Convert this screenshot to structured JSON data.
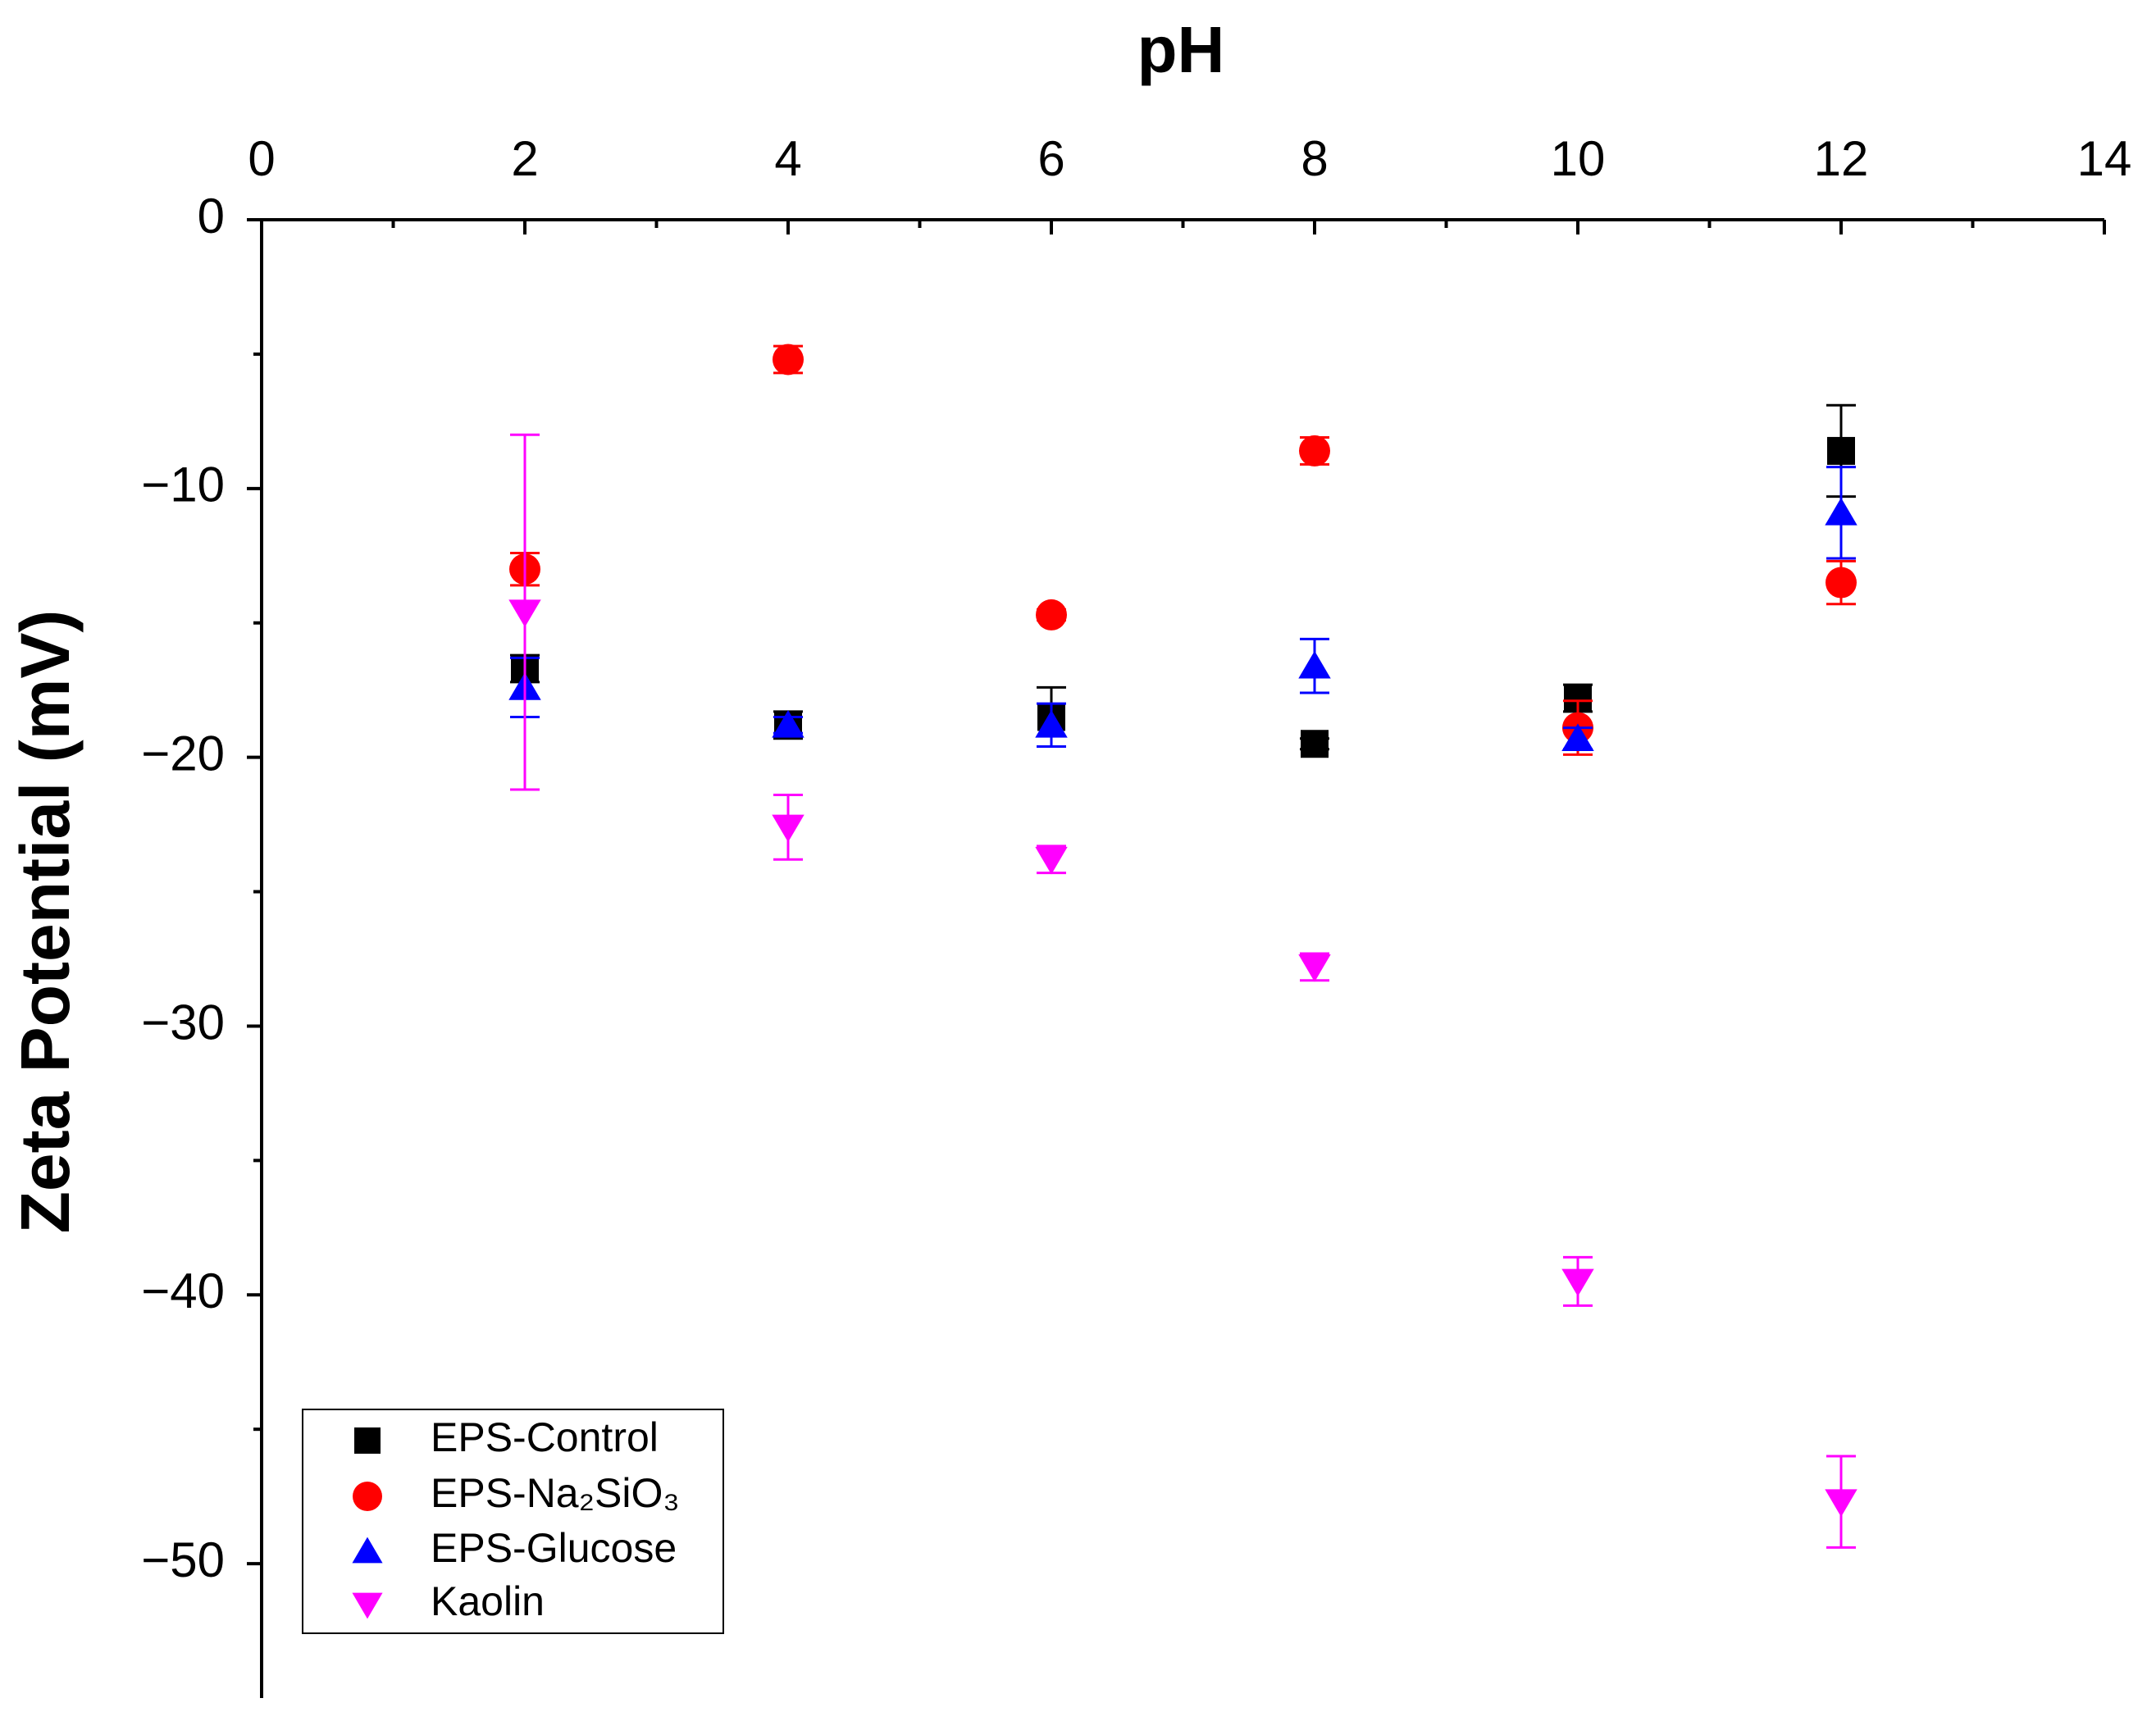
{
  "chart_data": {
    "type": "scatter",
    "title": "pH",
    "y_label": "Zeta Potential (mV)",
    "x": [
      2,
      4,
      6,
      8,
      10,
      12
    ],
    "xlim": [
      0,
      14
    ],
    "xticks": [
      0,
      2,
      4,
      6,
      8,
      10,
      12,
      14
    ],
    "xminorticks": [
      1,
      3,
      5,
      7,
      9,
      11,
      13
    ],
    "ylim": [
      -55,
      0
    ],
    "yticks": [
      0,
      {
        "value": -10,
        "label": "−10"
      },
      {
        "value": -20,
        "label": "−20"
      },
      {
        "value": -30,
        "label": "−30"
      },
      {
        "value": -40,
        "label": "−40"
      },
      {
        "value": -50,
        "label": "−50"
      }
    ],
    "yminorticks": [
      -5,
      -15,
      -25,
      -35,
      -45
    ],
    "legend": "bottom-left",
    "series": [
      {
        "name": "EPS-Control",
        "color": "#000000",
        "marker": "square",
        "values": [
          -16.7,
          -18.8,
          -18.5,
          -19.5,
          -17.8,
          -8.6
        ],
        "errors": [
          0.5,
          0.5,
          1.1,
          0.2,
          0.5,
          1.7
        ]
      },
      {
        "name": "EPS-Na₂SiO₃",
        "color": "#ff0000",
        "marker": "circle",
        "values": [
          -13.0,
          -5.2,
          -14.7,
          -8.6,
          -18.9,
          -13.5
        ],
        "errors": [
          0.6,
          0.5,
          0.2,
          0.5,
          1.0,
          0.8
        ]
      },
      {
        "name": "EPS-Glucose",
        "color": "#0000ff",
        "marker": "triangle",
        "values": [
          -17.4,
          -18.8,
          -18.8,
          -16.6,
          -19.3,
          -10.9
        ],
        "errors": [
          1.1,
          0.3,
          0.8,
          1.0,
          0.4,
          1.7
        ]
      },
      {
        "name": "Kaolin",
        "color": "#ff00ff",
        "marker": "down-triangle",
        "values": [
          -14.6,
          -22.6,
          -23.8,
          -27.8,
          -39.5,
          -47.7
        ],
        "errors": [
          6.6,
          1.2,
          0.5,
          0.5,
          0.9,
          1.7
        ]
      }
    ]
  }
}
